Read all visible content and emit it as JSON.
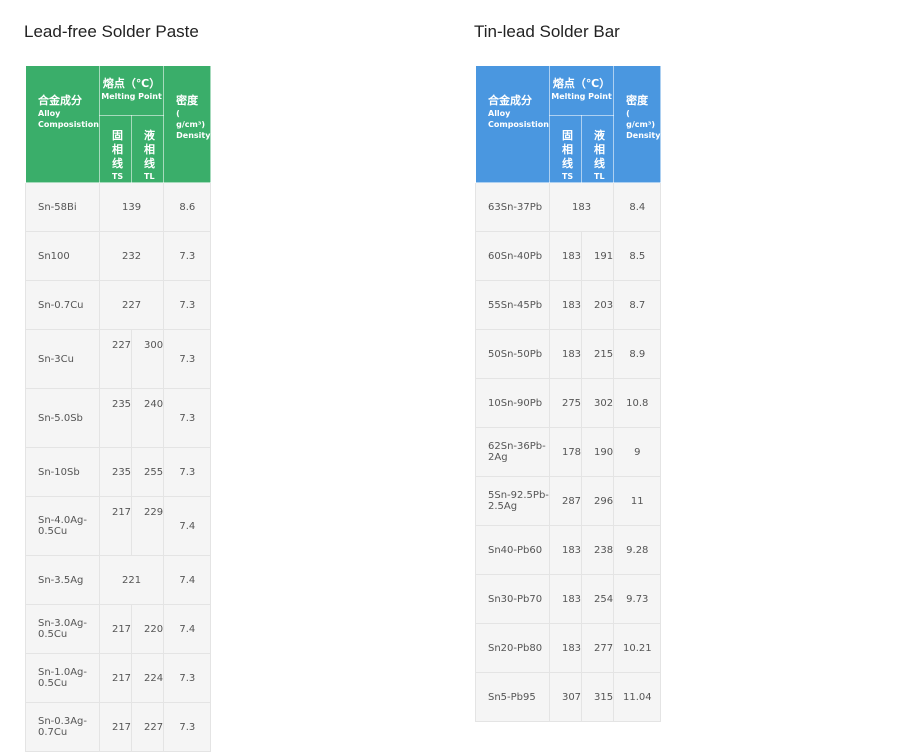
{
  "left": {
    "title": "Lead-free Solder Paste",
    "header": {
      "alloy_zh": "合金成分",
      "alloy_en": "Alloy Composistion",
      "mp_zh": "熔点（℃）",
      "mp_en": "Melting Point",
      "ts_zh": "固相线",
      "ts_en": "TS",
      "tl_zh": "液相线",
      "tl_en": "TL",
      "density_zh": "密度",
      "density_unit": "( g/cm³)",
      "density_en": "Density"
    },
    "rows": [
      {
        "alloy": "Sn-58Bi",
        "mp": "139",
        "density": "8.6"
      },
      {
        "alloy": "Sn100",
        "mp": "232",
        "density": "7.3"
      },
      {
        "alloy": "Sn-0.7Cu",
        "mp": "227",
        "density": "7.3"
      },
      {
        "alloy": "Sn-3Cu",
        "ts": "227",
        "tl": "300",
        "density": "7.3"
      },
      {
        "alloy": "Sn-5.0Sb",
        "ts": "235",
        "tl": "240",
        "density": "7.3"
      },
      {
        "alloy": "Sn-10Sb",
        "ts": "235",
        "tl": "255",
        "density": "7.3"
      },
      {
        "alloy": "Sn-4.0Ag-0.5Cu",
        "ts": "217",
        "tl": "229",
        "density": "7.4"
      },
      {
        "alloy": "Sn-3.5Ag",
        "mp": "221",
        "density": "7.4"
      },
      {
        "alloy": "Sn-3.0Ag-0.5Cu",
        "ts": "217",
        "tl": "220",
        "density": "7.4"
      },
      {
        "alloy": "Sn-1.0Ag-0.5Cu",
        "ts": "217",
        "tl": "224",
        "density": "7.3"
      },
      {
        "alloy": "Sn-0.3Ag-0.7Cu",
        "ts": "217",
        "tl": "227",
        "density": "7.3"
      }
    ]
  },
  "right": {
    "title": "Tin-lead Solder Bar",
    "header": {
      "alloy_zh": "合金成分",
      "alloy_en": "Alloy Composistion",
      "mp_zh": "熔点（℃）",
      "mp_en": "Melting Point",
      "ts_zh": "固相线",
      "ts_en": "TS",
      "tl_zh": "液相线",
      "tl_en": "TL",
      "density_zh": "密度",
      "density_unit": "( g/cm³)",
      "density_en": "Density"
    },
    "rows": [
      {
        "alloy": "63Sn-37Pb",
        "mp": "183",
        "density": "8.4"
      },
      {
        "alloy": "60Sn-40Pb",
        "ts": "183",
        "tl": "191",
        "density": "8.5"
      },
      {
        "alloy": "55Sn-45Pb",
        "ts": "183",
        "tl": "203",
        "density": "8.7"
      },
      {
        "alloy": "50Sn-50Pb",
        "ts": "183",
        "tl": "215",
        "density": "8.9"
      },
      {
        "alloy": "10Sn-90Pb",
        "ts": "275",
        "tl": "302",
        "density": "10.8"
      },
      {
        "alloy": "62Sn-36Pb-2Ag",
        "ts": "178",
        "tl": "190",
        "density": "9"
      },
      {
        "alloy": "5Sn-92.5Pb-2.5Ag",
        "ts": "287",
        "tl": "296",
        "density": "11"
      },
      {
        "alloy": "Sn40-Pb60",
        "ts": "183",
        "tl": "238",
        "density": "9.28"
      },
      {
        "alloy": "Sn30-Pb70",
        "ts": "183",
        "tl": "254",
        "density": "9.73"
      },
      {
        "alloy": "Sn20-Pb80",
        "ts": "183",
        "tl": "277",
        "density": "10.21"
      },
      {
        "alloy": "Sn5-Pb95",
        "ts": "307",
        "tl": "315",
        "density": "11.04"
      }
    ]
  },
  "colors": {
    "left_header": "#3aae6a",
    "right_header": "#4a97e0",
    "cell_bg": "#f5f5f5"
  }
}
